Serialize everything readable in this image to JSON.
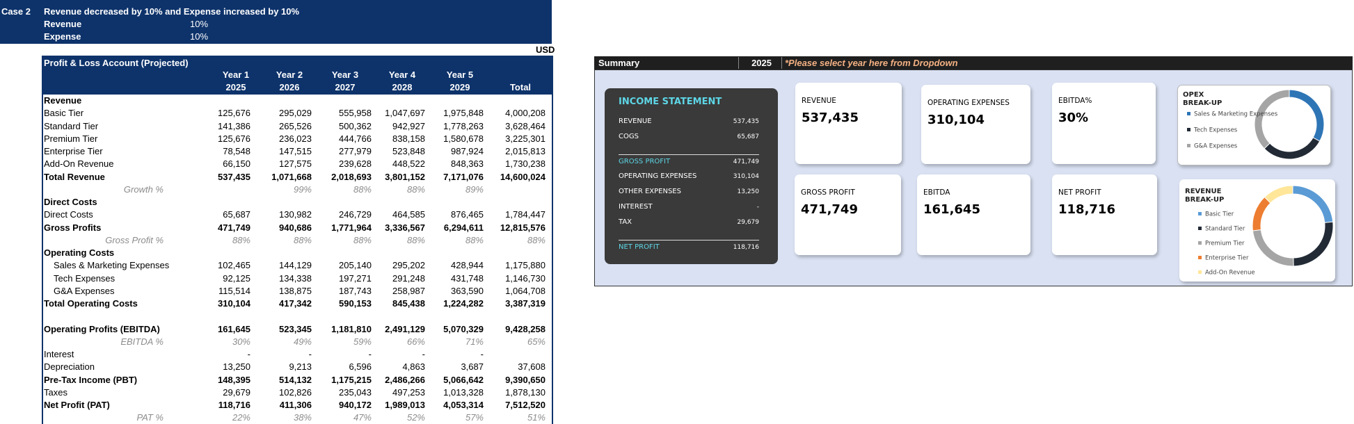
{
  "case": {
    "label": "Case 2",
    "title": "Revenue decreased by 10% and Expense increased by 10%",
    "rows": [
      {
        "label": "Revenue",
        "value": "10%"
      },
      {
        "label": "Expense",
        "value": "10%"
      }
    ]
  },
  "currency": "USD",
  "pl": {
    "title": "Profit & Loss Account (Projected)",
    "years": [
      "Year 1",
      "Year 2",
      "Year 3",
      "Year 4",
      "Year 5"
    ],
    "fiscal": [
      "2025",
      "2026",
      "2027",
      "2028",
      "2029"
    ],
    "total": "Total",
    "rows": [
      {
        "label": "Revenue",
        "style": "section"
      },
      {
        "label": "Basic Tier",
        "style": "normal",
        "cells": [
          "125,676",
          "295,029",
          "555,958",
          "1,047,697",
          "1,975,848",
          "4,000,208"
        ]
      },
      {
        "label": "Standard Tier",
        "style": "normal",
        "cells": [
          "141,386",
          "265,526",
          "500,362",
          "942,927",
          "1,778,263",
          "3,628,464"
        ]
      },
      {
        "label": "Premium Tier",
        "style": "normal",
        "cells": [
          "125,676",
          "236,023",
          "444,766",
          "838,158",
          "1,580,678",
          "3,225,301"
        ]
      },
      {
        "label": "Enterprise Tier",
        "style": "normal",
        "cells": [
          "78,548",
          "147,515",
          "277,979",
          "523,848",
          "987,924",
          "2,015,813"
        ]
      },
      {
        "label": "Add-On Revenue",
        "style": "normal",
        "cells": [
          "66,150",
          "127,575",
          "239,628",
          "448,522",
          "848,363",
          "1,730,238"
        ]
      },
      {
        "label": "Total Revenue",
        "style": "bold",
        "cells": [
          "537,435",
          "1,071,668",
          "2,018,693",
          "3,801,152",
          "7,171,076",
          "14,600,024"
        ]
      },
      {
        "label": "Growth %",
        "style": "pct",
        "cells": [
          null,
          "99%",
          "88%",
          "88%",
          "89%",
          null
        ]
      },
      {
        "label": "Direct Costs",
        "style": "section"
      },
      {
        "label": "Direct Costs",
        "style": "normal",
        "cells": [
          "65,687",
          "130,982",
          "246,729",
          "464,585",
          "876,465",
          "1,784,447"
        ]
      },
      {
        "label": "Gross Profits",
        "style": "bold",
        "cells": [
          "471,749",
          "940,686",
          "1,771,964",
          "3,336,567",
          "6,294,611",
          "12,815,576"
        ]
      },
      {
        "label": "Gross Profit %",
        "style": "pct",
        "cells": [
          "88%",
          "88%",
          "88%",
          "88%",
          "88%",
          "88%"
        ]
      },
      {
        "label": "Operating Costs",
        "style": "section"
      },
      {
        "label": "Sales & Marketing Expenses",
        "style": "indent",
        "cells": [
          "102,465",
          "144,129",
          "205,140",
          "295,202",
          "428,944",
          "1,175,880"
        ]
      },
      {
        "label": "Tech Expenses",
        "style": "indent",
        "cells": [
          "92,125",
          "134,338",
          "197,271",
          "291,248",
          "431,748",
          "1,146,730"
        ]
      },
      {
        "label": "G&A Expenses",
        "style": "indent",
        "cells": [
          "115,514",
          "138,875",
          "187,743",
          "258,987",
          "363,590",
          "1,064,708"
        ]
      },
      {
        "label": "Total Operating Costs",
        "style": "bold",
        "cells": [
          "310,104",
          "417,342",
          "590,153",
          "845,438",
          "1,224,282",
          "3,387,319"
        ]
      },
      {
        "label": "Operating Profits (EBITDA)",
        "style": "bold",
        "gap_before": true,
        "cells": [
          "161,645",
          "523,345",
          "1,181,810",
          "2,491,129",
          "5,070,329",
          "9,428,258"
        ]
      },
      {
        "label": "EBITDA %",
        "style": "pct",
        "cells": [
          "30%",
          "49%",
          "59%",
          "66%",
          "71%",
          "65%"
        ]
      },
      {
        "label": "Interest",
        "style": "normal",
        "cells": [
          "-",
          "-",
          "-",
          "-",
          "-",
          null
        ]
      },
      {
        "label": "Depreciation",
        "style": "normal",
        "cells": [
          "13,250",
          "9,213",
          "6,596",
          "4,863",
          "3,687",
          "37,608"
        ]
      },
      {
        "label": "Pre-Tax Income (PBT)",
        "style": "bold",
        "cells": [
          "148,395",
          "514,132",
          "1,175,215",
          "2,486,266",
          "5,066,642",
          "9,390,650"
        ]
      },
      {
        "label": "Taxes",
        "style": "normal",
        "cells": [
          "29,679",
          "102,826",
          "235,043",
          "497,253",
          "1,013,328",
          "1,878,130"
        ]
      },
      {
        "label": "Net Profit (PAT)",
        "style": "bold",
        "cells": [
          "118,716",
          "411,306",
          "940,172",
          "1,989,013",
          "4,053,314",
          "7,512,520"
        ]
      },
      {
        "label": "PAT %",
        "style": "pct",
        "cells": [
          "22%",
          "38%",
          "47%",
          "52%",
          "57%",
          "51%"
        ]
      }
    ]
  },
  "summary": {
    "title": "Summary",
    "year": "2025",
    "prompt": "*Please select year here from Dropdown"
  },
  "income_statement": {
    "title": "INCOME STATEMENT",
    "rows": [
      {
        "label": "REVENUE",
        "value": "537,435"
      },
      {
        "label": "COGS",
        "value": "65,687"
      },
      {
        "label": "GROSS PROFIT",
        "value": "471,749",
        "rule_before": true,
        "highlight": true
      },
      {
        "label": "OPERATING EXPENSES",
        "value": "310,104"
      },
      {
        "label": "OTHER EXPENSES",
        "value": "13,250"
      },
      {
        "label": "INTEREST",
        "value": "-"
      },
      {
        "label": "TAX",
        "value": "29,679"
      },
      {
        "label": "NET PROFIT",
        "value": "118,716",
        "rule_before": true,
        "highlight": true
      }
    ]
  },
  "kpis": [
    {
      "label": "REVENUE",
      "value": "537,435"
    },
    {
      "label": "OPERATING EXPENSES",
      "value": "310,104"
    },
    {
      "label": "EBITDA%",
      "value": "30%"
    },
    {
      "label": "GROSS PROFIT",
      "value": "471,749"
    },
    {
      "label": "EBITDA",
      "value": "161,645"
    },
    {
      "label": "NET PROFIT",
      "value": "118,716"
    }
  ],
  "chart_data": [
    {
      "type": "donut",
      "title": "OPEX BREAK-UP",
      "categories": [
        "Sales & Marketing Expenses",
        "Tech Expenses",
        "G&A Expenses"
      ],
      "values": [
        102465,
        92125,
        115514
      ],
      "colors": [
        "#2e75b6",
        "#222a35",
        "#a5a5a5"
      ]
    },
    {
      "type": "donut",
      "title": "REVENUE BREAK-UP",
      "categories": [
        "Basic Tier",
        "Standard Tier",
        "Premium Tier",
        "Enterprise Tier",
        "Add-On Revenue"
      ],
      "values": [
        125676,
        141386,
        125676,
        78548,
        66150
      ],
      "colors": [
        "#5b9bd5",
        "#222a35",
        "#a5a5a5",
        "#ed7d31",
        "#ffe699"
      ]
    }
  ]
}
